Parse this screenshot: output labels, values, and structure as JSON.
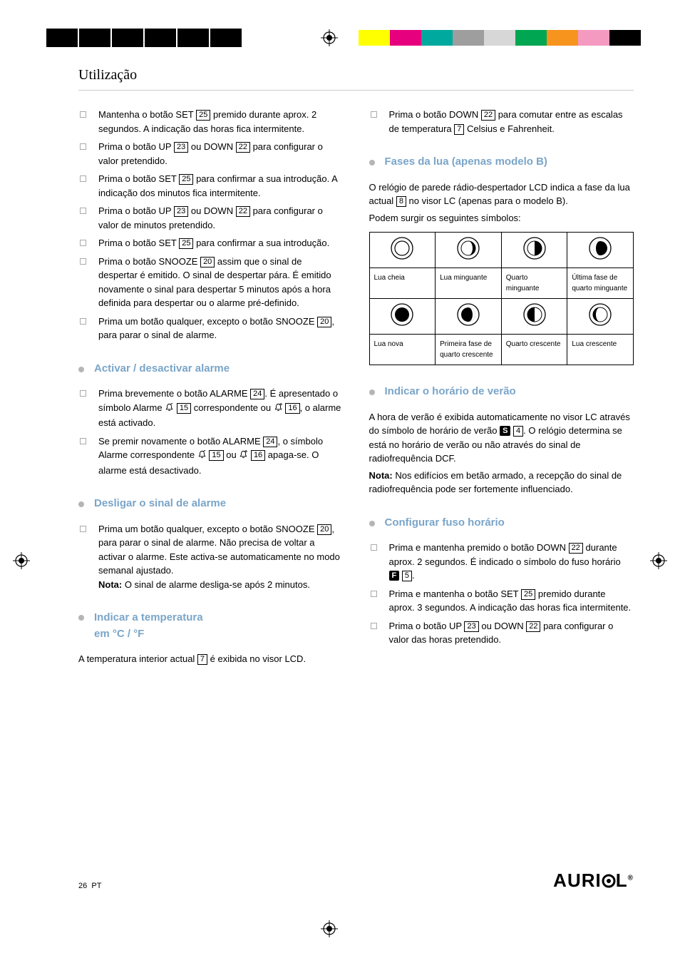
{
  "registration": {
    "top_colors": [
      "#ffff00",
      "#e6007e",
      "#00a99d",
      "#9e9e9e",
      "#d7d7d7",
      "#00a651",
      "#f7941d",
      "#f49ac1",
      "#000000"
    ]
  },
  "page": {
    "title": "Utilização",
    "footer_page": "26",
    "footer_lang": "PT",
    "brand": "AURIOL"
  },
  "left": {
    "items1": [
      {
        "pre": "Mantenha o botão SET ",
        "ref": "25",
        "post": " premido durante aprox. 2 segundos. A indicação das horas fica intermitente."
      },
      {
        "pre": "Prima o botão UP ",
        "ref": "23",
        "mid": " ou DOWN ",
        "ref2": "22",
        "post": " para configurar o valor pretendido."
      },
      {
        "pre": "Prima o botão SET ",
        "ref": "25",
        "post": " para confirmar a sua introdução. A indicação dos minutos fica intermitente."
      },
      {
        "pre": "Prima o botão UP ",
        "ref": "23",
        "mid": " ou DOWN ",
        "ref2": "22",
        "post": " para configurar o valor de minutos pretendido."
      },
      {
        "pre": "Prima o botão SET ",
        "ref": "25",
        "post": " para confirmar a sua introdução."
      },
      {
        "pre": "Prima o botão SNOOZE ",
        "ref": "20",
        "post": " assim que o sinal de despertar é emitido. O sinal de despertar pára. É emitido novamente o sinal para despertar 5 minutos após a hora definida para despertar ou o alarme pré-definido."
      },
      {
        "pre": "Prima um botão qualquer, excepto o botão SNOOZE ",
        "ref": "20",
        "post": ", para parar o sinal de alarme."
      }
    ],
    "sec2_title": "Activar / desactivar alarme",
    "items2": [
      {
        "text_a": "Prima brevemente o botão ALARME ",
        "ref_a": "24",
        "text_b": ". É apresentado o símbolo Alarme ",
        "bell1": true,
        "ref_b": "15",
        "text_c": " correspondente ou ",
        "bell2": true,
        "ref_c": "16",
        "text_d": ", o alarme está activado."
      },
      {
        "text_a": "Se premir novamente o botão ALARME ",
        "ref_a": "24",
        "text_b": ", o símbolo Alarme correspondente ",
        "bell1": true,
        "ref_b": "15",
        "text_c": " ou ",
        "bell2": true,
        "ref_c": "16",
        "text_d": " apaga-se. O alarme está desactivado."
      }
    ],
    "sec3_title": "Desligar o sinal de alarme",
    "items3": [
      {
        "pre": "Prima um botão qualquer, excepto o botão SNOOZE ",
        "ref": "20",
        "post": ", para parar o sinal de alarme. Não precisa de voltar a activar o alarme. Este activa-se automaticamente no modo semanal ajustado.",
        "note": "Nota:",
        "note_post": " O sinal de alarme desliga-se após 2 minutos."
      }
    ],
    "sec4_title_l1": "Indicar a temperatura",
    "sec4_title_l2": "em °C / °F",
    "temp_body_pre": "A temperatura interior actual ",
    "temp_ref": "7",
    "temp_body_post": " é exibida no visor LCD."
  },
  "right": {
    "item0": {
      "pre": "Prima o botão DOWN ",
      "ref": "22",
      "mid": " para comutar entre as escalas de temperatura ",
      "ref2": "7",
      "post": " Celsius e Fahrenheit."
    },
    "sec1_title": "Fases da lua (apenas modelo B)",
    "sec1_body_pre": "O relógio de parede rádio-despertador LCD indica a fase da lua actual ",
    "sec1_ref": "8",
    "sec1_body_post": " no visor LC (apenas para o modelo B).",
    "sec1_body2": "Podem surgir os seguintes símbolos:",
    "moon": {
      "row1_labels": [
        "Lua cheia",
        "Lua minguante",
        "Quarto minguante",
        "Última fase de quarto minguante"
      ],
      "row2_labels": [
        "Lua nova",
        "Primeira fase de quarto crescente",
        "Quarto crescente",
        "Lua crescente"
      ],
      "row1_phases": [
        "full",
        "waning-gibbous",
        "last-quarter",
        "waning-crescent"
      ],
      "row2_phases": [
        "new",
        "waxing-crescent",
        "first-quarter",
        "waxing-gibbous"
      ]
    },
    "sec2_title": "Indicar o horário de verão",
    "sec2_body_pre": "A hora de verão é exibida automaticamente no visor LC através do símbolo de horário de verão ",
    "sec2_badge": "S",
    "sec2_ref": "4",
    "sec2_body_post": ". O relógio determina se está no horário de verão ou não através do sinal de radiofrequência DCF.",
    "sec2_note": "Nota:",
    "sec2_note_post": " Nos edifícios em betão armado, a recepção do sinal de radiofrequência pode ser fortemente influenciado.",
    "sec3_title": "Configurar fuso horário",
    "items3": [
      {
        "pre": "Prima e mantenha premido o botão DOWN ",
        "ref": "22",
        "mid": " durante aprox. 2 segundos. É indicado o símbolo do fuso horário ",
        "badge": "F",
        "ref2": "5",
        "post": "."
      },
      {
        "pre": "Prima e mantenha o botão SET ",
        "ref": "25",
        "post": " premido durante aprox. 3 segundos. A indicação das horas fica intermitente."
      },
      {
        "pre": "Prima o botão UP ",
        "ref": "23",
        "mid": " ou DOWN ",
        "ref2": "22",
        "post": " para configurar o valor das horas pretendido."
      }
    ]
  }
}
